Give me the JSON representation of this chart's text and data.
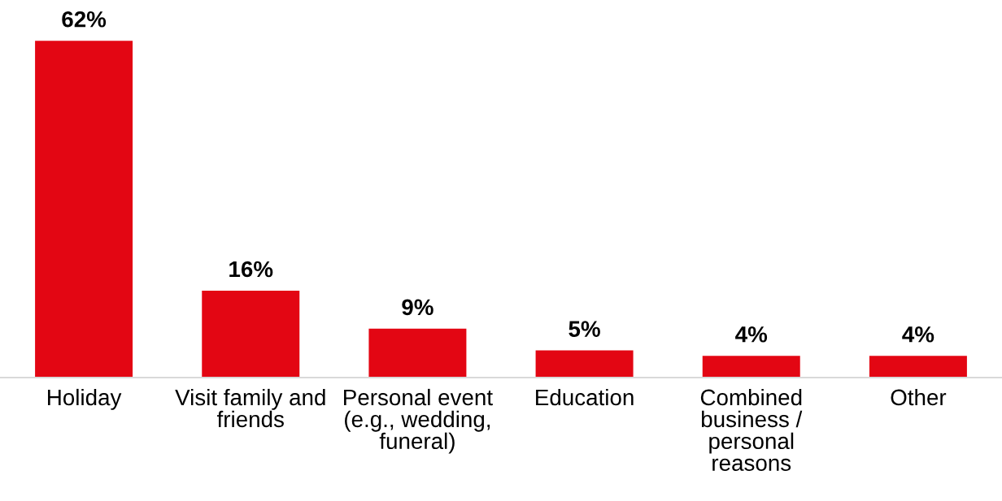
{
  "chart_data": {
    "type": "bar",
    "categories": [
      "Holiday",
      "Visit family and friends",
      "Personal event (e.g., wedding, funeral)",
      "Education",
      "Combined business / personal reasons",
      "Other"
    ],
    "values": [
      62,
      16,
      9,
      5,
      4,
      4
    ],
    "value_labels": [
      "62%",
      "16%",
      "9%",
      "5%",
      "4%",
      "4%"
    ],
    "color": "#e30613",
    "grid": false,
    "legend": false
  }
}
